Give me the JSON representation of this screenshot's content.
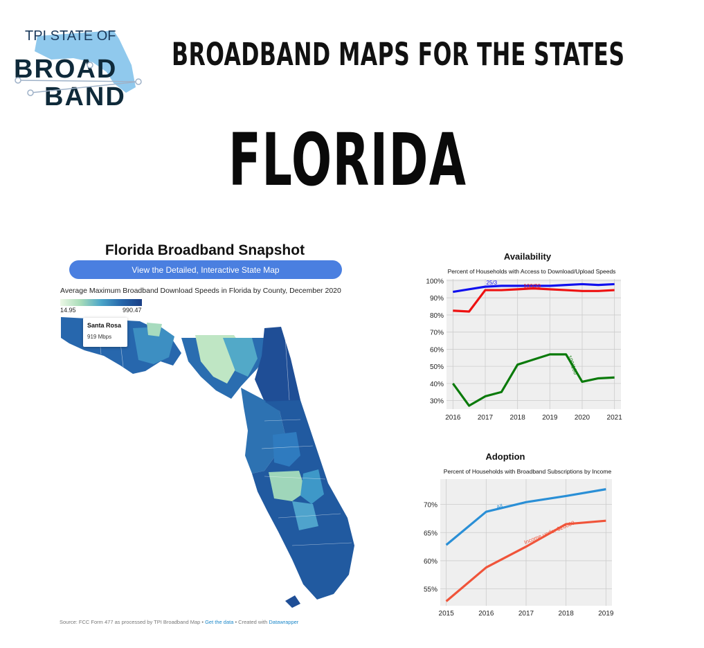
{
  "logo": {
    "line1": "TPI STATE OF",
    "line2": "BROAD",
    "line3": "BAND"
  },
  "header": {
    "headline": "BROADBAND MAPS FOR THE STATES",
    "state": "FLORIDA"
  },
  "map_panel": {
    "title": "Florida Broadband Snapshot",
    "button_label": "View the Detailed, Interactive State Map",
    "subtitle": "Average Maximum Broadband Download Speeds in Florida by County, December 2020",
    "legend_min": "14.95",
    "legend_max": "990.47",
    "tooltip": {
      "county": "Santa Rosa",
      "value": "919 Mbps"
    },
    "source_prefix": "Source: FCC Form 477 as processed by TPI Broadband Map • ",
    "source_link1": "Get the data",
    "source_mid": " • Created with ",
    "source_link2": "Datawrapper",
    "colors": {
      "low": "#edf8e6",
      "mid": "#4ba6c9",
      "high": "#1f4e96"
    }
  },
  "chart_data": [
    {
      "type": "line",
      "title": "Availability",
      "subtitle": "Percent of Households with Access to Download/Upload Speeds",
      "xlim": [
        2015.8,
        2021.2
      ],
      "ylim": [
        25,
        101
      ],
      "xticks": [
        2016,
        2017,
        2018,
        2019,
        2020,
        2021
      ],
      "yticks": [
        30,
        40,
        50,
        60,
        70,
        80,
        90,
        100
      ],
      "ytick_labels": [
        "30%",
        "40%",
        "50%",
        "60%",
        "70%",
        "80%",
        "90%",
        "100%"
      ],
      "grid": true,
      "series": [
        {
          "name": "25/3",
          "color": "#1010ee",
          "x": [
            2016,
            2016.5,
            2017,
            2017.5,
            2018,
            2018.5,
            2019,
            2019.5,
            2020,
            2020.5,
            2021
          ],
          "y": [
            93.5,
            95,
            96.5,
            97,
            97,
            97,
            97,
            97.5,
            98,
            97.5,
            98
          ]
        },
        {
          "name": "100/20",
          "color": "#ee1111",
          "x": [
            2016,
            2016.5,
            2017,
            2017.5,
            2018,
            2018.5,
            2019,
            2019.5,
            2020,
            2020.5,
            2021
          ],
          "y": [
            82.5,
            82,
            94.5,
            94.5,
            95,
            95.5,
            95,
            94.5,
            94,
            94,
            94.5
          ]
        },
        {
          "name": "100/100",
          "color": "#0a7a0a",
          "x": [
            2016,
            2016.5,
            2017,
            2017.5,
            2018,
            2018.5,
            2019,
            2019.5,
            2020,
            2020.5,
            2021
          ],
          "y": [
            40,
            27,
            32.5,
            35,
            51,
            54,
            57,
            57,
            41,
            43,
            43.5
          ]
        }
      ]
    },
    {
      "type": "line",
      "title": "Adoption",
      "subtitle": "Percent of Households with Broadband Subscriptions by Income",
      "xlim": [
        2014.85,
        2019.15
      ],
      "ylim": [
        52,
        74.5
      ],
      "xticks": [
        2015,
        2016,
        2017,
        2018,
        2019
      ],
      "yticks": [
        55,
        60,
        65,
        70
      ],
      "ytick_labels": [
        "55%",
        "60%",
        "65%",
        "70%"
      ],
      "grid": true,
      "series": [
        {
          "name": "All",
          "color": "#2a8fd6",
          "x": [
            2015,
            2016,
            2017,
            2018,
            2019
          ],
          "y": [
            62.8,
            68.7,
            70.4,
            71.5,
            72.7
          ]
        },
        {
          "name": "Income under $20000",
          "color": "#f0543a",
          "x": [
            2015,
            2016,
            2017,
            2018,
            2019
          ],
          "y": [
            52.8,
            58.8,
            62.5,
            66.5,
            67.1
          ]
        }
      ]
    }
  ]
}
